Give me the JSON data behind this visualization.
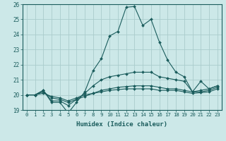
{
  "xlabel": "Humidex (Indice chaleur)",
  "bg_color": "#cce8e8",
  "line_color": "#1a5c5c",
  "grid_color": "#aacccc",
  "xlim": [
    -0.5,
    23.5
  ],
  "ylim": [
    19,
    26
  ],
  "xticks": [
    0,
    1,
    2,
    3,
    4,
    5,
    6,
    7,
    8,
    9,
    10,
    11,
    12,
    13,
    14,
    15,
    16,
    17,
    18,
    19,
    20,
    21,
    22,
    23
  ],
  "yticks": [
    19,
    20,
    21,
    22,
    23,
    24,
    25,
    26
  ],
  "lines": [
    {
      "x": [
        0,
        1,
        2,
        3,
        4,
        5,
        6,
        7,
        8,
        9,
        10,
        11,
        12,
        13,
        14,
        15,
        16,
        17,
        18,
        19,
        20,
        21,
        22,
        23
      ],
      "y": [
        20.0,
        20.0,
        20.3,
        19.5,
        19.5,
        18.8,
        19.5,
        20.2,
        21.6,
        22.4,
        23.9,
        24.2,
        25.8,
        25.85,
        24.6,
        25.0,
        23.5,
        22.3,
        21.5,
        21.2,
        20.2,
        20.9,
        20.4,
        20.6
      ]
    },
    {
      "x": [
        0,
        1,
        2,
        3,
        4,
        5,
        6,
        7,
        8,
        9,
        10,
        11,
        12,
        13,
        14,
        15,
        16,
        17,
        18,
        19,
        20,
        21,
        22,
        23
      ],
      "y": [
        20.0,
        20.0,
        20.3,
        19.6,
        19.6,
        19.3,
        19.7,
        20.1,
        20.6,
        21.0,
        21.2,
        21.3,
        21.4,
        21.5,
        21.5,
        21.5,
        21.2,
        21.1,
        21.0,
        20.9,
        20.2,
        20.3,
        20.4,
        20.6
      ]
    },
    {
      "x": [
        0,
        1,
        2,
        3,
        4,
        5,
        6,
        7,
        8,
        9,
        10,
        11,
        12,
        13,
        14,
        15,
        16,
        17,
        18,
        19,
        20,
        21,
        22,
        23
      ],
      "y": [
        20.0,
        20.0,
        20.2,
        19.8,
        19.7,
        19.5,
        19.7,
        19.9,
        20.1,
        20.3,
        20.4,
        20.5,
        20.55,
        20.6,
        20.6,
        20.6,
        20.5,
        20.4,
        20.4,
        20.3,
        20.2,
        20.2,
        20.3,
        20.5
      ]
    },
    {
      "x": [
        0,
        1,
        2,
        3,
        4,
        5,
        6,
        7,
        8,
        9,
        10,
        11,
        12,
        13,
        14,
        15,
        16,
        17,
        18,
        19,
        20,
        21,
        22,
        23
      ],
      "y": [
        20.0,
        20.0,
        20.1,
        19.9,
        19.8,
        19.6,
        19.8,
        20.0,
        20.1,
        20.2,
        20.3,
        20.35,
        20.4,
        20.4,
        20.4,
        20.4,
        20.3,
        20.3,
        20.3,
        20.2,
        20.1,
        20.15,
        20.2,
        20.4
      ]
    }
  ]
}
